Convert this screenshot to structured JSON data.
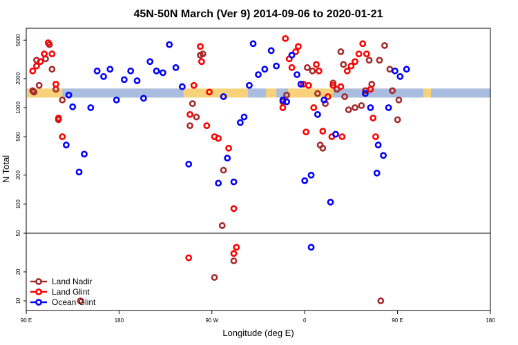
{
  "chart_data": {
    "type": "scatter",
    "title": "45N-50N March (Ver 9)   2014-09-06 to 2020-01-21",
    "xlabel": "Longitude (deg E)",
    "ylabel": "N Total",
    "x_ticks": [
      "90 E",
      "180",
      "90 W",
      "0",
      "90 E",
      "180"
    ],
    "y_ticks_upper": [
      "5000",
      "2000",
      "1000",
      "500",
      "200",
      "100",
      "50"
    ],
    "y_ticks_lower": [
      "20",
      "10"
    ],
    "colors": {
      "land_nadir": "#a52a2a",
      "land_glint": "#ff0000",
      "ocean_glint": "#0000ff",
      "band_land": "#f7d27a",
      "band_ocean": "#a8bde0"
    },
    "legend": {
      "placement": "bottom-left",
      "entries": [
        {
          "key": "land_nadir",
          "label": "Land Nadir"
        },
        {
          "key": "land_glint",
          "label": "Land Glint"
        },
        {
          "key": "ocean_glint",
          "label": "Ocean Glint"
        }
      ]
    },
    "series": [
      {
        "key": "land_nadir",
        "name": "Land Nadir",
        "upper": [
          [
            96,
            1450
          ],
          [
            98,
            3100
          ],
          [
            100,
            1700
          ],
          [
            105,
            3200
          ],
          [
            108,
            4500
          ],
          [
            110,
            2500
          ],
          [
            113,
            1550
          ],
          [
            115,
            750
          ],
          [
            118,
            1200
          ],
          [
            217,
            650
          ],
          [
            219,
            1100
          ],
          [
            222,
            800
          ],
          [
            225,
            3500
          ],
          [
            227,
            3600
          ],
          [
            243,
            225
          ],
          [
            242,
            60
          ],
          [
            289,
            1150
          ],
          [
            292,
            1350
          ],
          [
            308,
            2600
          ],
          [
            312,
            2400
          ],
          [
            316,
            1400
          ],
          [
            318,
            410
          ],
          [
            320,
            380
          ],
          [
            322,
            1100
          ],
          [
            328,
            1800
          ],
          [
            331,
            1550
          ],
          [
            334,
            3800
          ],
          [
            336,
            2800
          ],
          [
            337,
            1300
          ],
          [
            340,
            950
          ],
          [
            345,
            1000
          ],
          [
            350,
            1050
          ],
          [
            353,
            1500
          ],
          [
            356,
            3100
          ],
          [
            358,
            1750
          ],
          [
            364,
            3100
          ],
          [
            368,
            4400
          ],
          [
            372,
            2500
          ],
          [
            374,
            1500
          ],
          [
            378,
            750
          ],
          [
            379,
            1200
          ],
          [
            95,
            1500
          ]
        ],
        "lower": [
          [
            236,
            17.5
          ],
          [
            251,
            26
          ],
          [
            132,
            10
          ],
          [
            365,
            10
          ]
        ]
      },
      {
        "key": "land_glint",
        "name": "Land Glint",
        "upper": [
          [
            95,
            2400
          ],
          [
            98,
            2700
          ],
          [
            101,
            3000
          ],
          [
            104,
            3600
          ],
          [
            107,
            4700
          ],
          [
            110,
            3600
          ],
          [
            113,
            1750
          ],
          [
            115,
            780
          ],
          [
            118,
            500
          ],
          [
            220,
            1700
          ],
          [
            225,
            4300
          ],
          [
            226,
            3000
          ],
          [
            230,
            650
          ],
          [
            232,
            1450
          ],
          [
            236,
            500
          ],
          [
            239,
            480
          ],
          [
            247,
            380
          ],
          [
            251,
            90
          ],
          [
            289,
            1000
          ],
          [
            291,
            5200
          ],
          [
            294,
            3200
          ],
          [
            296,
            2600
          ],
          [
            299,
            3800
          ],
          [
            301,
            4300
          ],
          [
            305,
            1750
          ],
          [
            307,
            560
          ],
          [
            309,
            1700
          ],
          [
            313,
            1000
          ],
          [
            315,
            2800
          ],
          [
            317,
            2400
          ],
          [
            320,
            570
          ],
          [
            324,
            1300
          ],
          [
            327,
            500
          ],
          [
            328,
            1700
          ],
          [
            334,
            1650
          ],
          [
            335,
            500
          ],
          [
            339,
            2400
          ],
          [
            342,
            2700
          ],
          [
            345,
            3000
          ],
          [
            348,
            3600
          ],
          [
            351,
            4600
          ],
          [
            354,
            3600
          ],
          [
            357,
            1550
          ],
          [
            359,
            780
          ],
          [
            361,
            500
          ],
          [
            217,
            850
          ]
        ],
        "lower": [
          [
            216,
            28
          ],
          [
            253,
            36
          ],
          [
            251,
            31
          ]
        ]
      },
      {
        "key": "ocean_glint",
        "name": "Ocean Glint",
        "upper": [
          [
            121,
            410
          ],
          [
            123,
            1350
          ],
          [
            126,
            1020
          ],
          [
            131,
            215
          ],
          [
            135,
            330
          ],
          [
            140,
            1000
          ],
          [
            145,
            2400
          ],
          [
            150,
            2100
          ],
          [
            155,
            2500
          ],
          [
            160,
            1200
          ],
          [
            166,
            1950
          ],
          [
            171,
            2400
          ],
          [
            176,
            1900
          ],
          [
            181,
            1250
          ],
          [
            186,
            3000
          ],
          [
            191,
            2400
          ],
          [
            196,
            2300
          ],
          [
            201,
            4500
          ],
          [
            206,
            2600
          ],
          [
            211,
            1650
          ],
          [
            216,
            260
          ],
          [
            239,
            165
          ],
          [
            243,
            1300
          ],
          [
            246,
            300
          ],
          [
            251,
            170
          ],
          [
            256,
            700
          ],
          [
            259,
            800
          ],
          [
            263,
            1700
          ],
          [
            266,
            4600
          ],
          [
            270,
            2200
          ],
          [
            275,
            2500
          ],
          [
            280,
            3900
          ],
          [
            284,
            2700
          ],
          [
            289,
            1200
          ],
          [
            292,
            1150
          ],
          [
            296,
            3500
          ],
          [
            300,
            2200
          ],
          [
            303,
            1750
          ],
          [
            306,
            175
          ],
          [
            311,
            200
          ],
          [
            316,
            850
          ],
          [
            321,
            1200
          ],
          [
            326,
            105
          ],
          [
            330,
            530
          ],
          [
            353,
            1400
          ],
          [
            357,
            1000
          ],
          [
            362,
            210
          ],
          [
            367,
            320
          ],
          [
            371,
            1000
          ],
          [
            376,
            2400
          ],
          [
            380,
            2100
          ],
          [
            385,
            2500
          ],
          [
            363,
            410
          ]
        ],
        "lower": [
          [
            311,
            36
          ]
        ]
      }
    ]
  }
}
